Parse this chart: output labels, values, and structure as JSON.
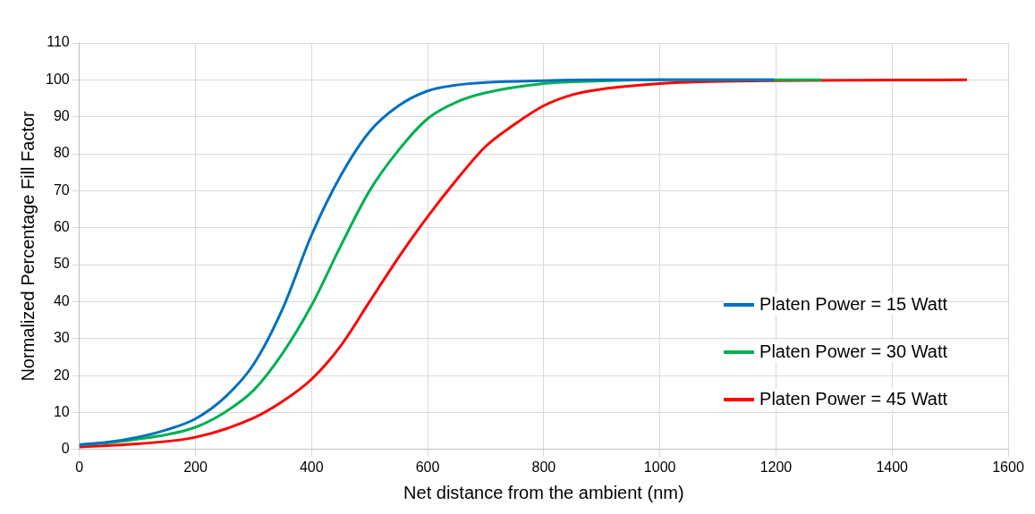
{
  "chart_data": {
    "type": "line",
    "xlabel": "Net distance from the ambient (nm)",
    "ylabel": "Normalized Percentage Fill Factor",
    "xlim": [
      0,
      1600
    ],
    "xticks": [
      0,
      200,
      400,
      600,
      800,
      1000,
      1200,
      1400,
      1600
    ],
    "ylim": [
      0,
      110
    ],
    "yticks": [
      0,
      10,
      20,
      30,
      40,
      50,
      60,
      70,
      80,
      90,
      100,
      110
    ],
    "grid": true,
    "legend": "bottom right",
    "marker": "none",
    "line_style": "solid",
    "series": [
      {
        "name": "Platen Power = 15 Watt",
        "color": "#0070c0",
        "x": [
          0,
          50,
          100,
          150,
          200,
          250,
          300,
          350,
          400,
          450,
          500,
          550,
          600,
          650,
          700,
          800,
          900,
          1000,
          1196
        ],
        "values": [
          1.3,
          2,
          3.3,
          5.3,
          8.3,
          14,
          23,
          38,
          58,
          74,
          86,
          93,
          97,
          98.6,
          99.3,
          99.8,
          100,
          100,
          100
        ]
      },
      {
        "name": "Platen Power = 30 Watt",
        "color": "#00b050",
        "x": [
          0,
          50,
          100,
          150,
          200,
          250,
          300,
          350,
          400,
          450,
          500,
          550,
          600,
          650,
          700,
          800,
          900,
          1000,
          1279
        ],
        "values": [
          1.2,
          1.8,
          2.8,
          4,
          6,
          10,
          16,
          26,
          39,
          55,
          70,
          81,
          89.5,
          94,
          96.5,
          99,
          99.7,
          100,
          100
        ]
      },
      {
        "name": "Platen Power = 45 Watt",
        "color": "#ff0000",
        "x": [
          0,
          100,
          200,
          300,
          350,
          400,
          450,
          500,
          550,
          600,
          650,
          700,
          750,
          800,
          850,
          900,
          1000,
          1100,
          1529
        ],
        "values": [
          0.7,
          1.5,
          3.3,
          8.5,
          13,
          19,
          28,
          40,
          52,
          63,
          73,
          82,
          88,
          93,
          96,
          97.5,
          99,
          99.6,
          100
        ]
      }
    ]
  }
}
